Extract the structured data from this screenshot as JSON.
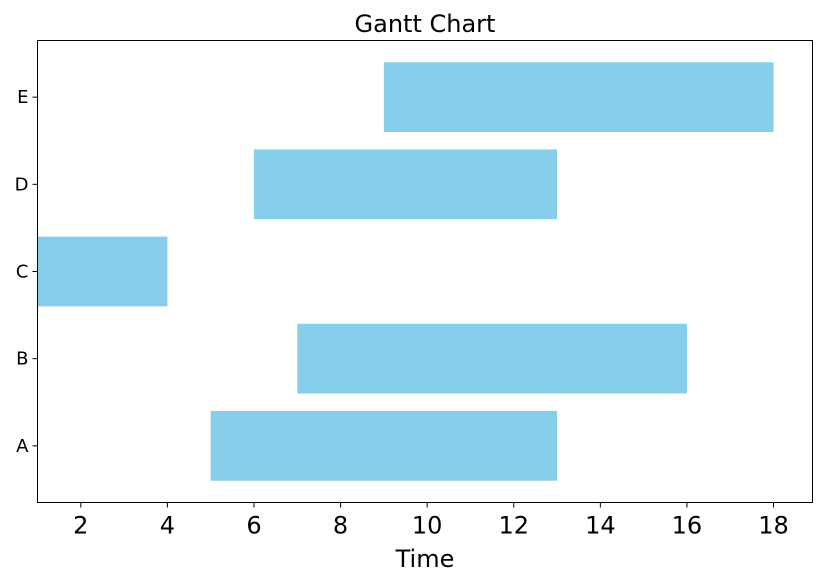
{
  "chart_data": {
    "type": "bar",
    "orientation": "horizontal",
    "title": "Gantt Chart",
    "xlabel": "Time",
    "ylabel": "",
    "xlim": [
      1,
      18.9
    ],
    "xticks": [
      2,
      4,
      6,
      8,
      10,
      12,
      14,
      16,
      18
    ],
    "categories": [
      "A",
      "B",
      "C",
      "D",
      "E"
    ],
    "tasks": [
      {
        "name": "A",
        "start": 5,
        "end": 13
      },
      {
        "name": "B",
        "start": 7,
        "end": 16
      },
      {
        "name": "C",
        "start": 1,
        "end": 4
      },
      {
        "name": "D",
        "start": 6,
        "end": 13
      },
      {
        "name": "E",
        "start": 9,
        "end": 18
      }
    ],
    "bar_color": "#87CEEB",
    "grid": false,
    "legend": "none"
  }
}
